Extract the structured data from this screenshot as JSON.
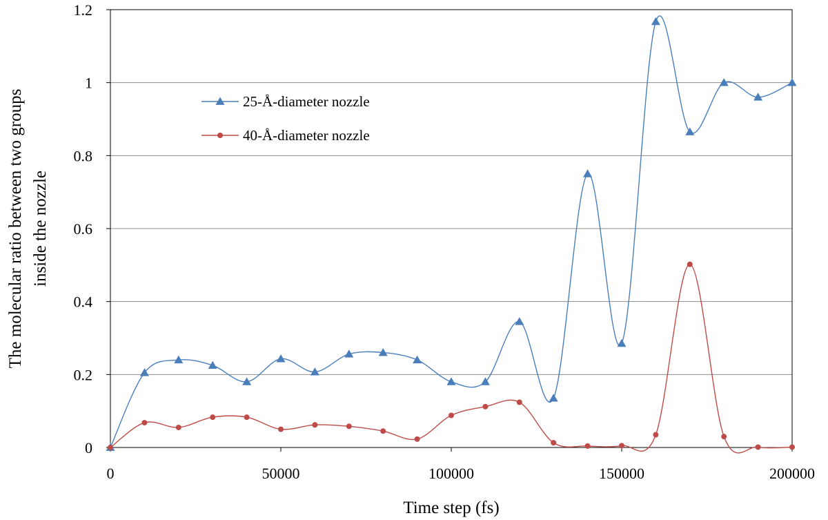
{
  "chart_data": {
    "type": "line",
    "xlabel": "Time step (fs)",
    "ylabel": [
      "The molecular ratio between two groups",
      "inside the nozzle"
    ],
    "xlim": [
      0,
      200000
    ],
    "ylim": [
      0,
      1.2
    ],
    "xticks": [
      0,
      50000,
      100000,
      150000,
      200000
    ],
    "yticks": [
      0,
      0.2,
      0.4,
      0.6,
      0.8,
      1,
      1.2
    ],
    "grid": "horizontal",
    "legend_position": "top-left",
    "series": [
      {
        "name": "25-Å-diameter nozzle",
        "color": "#4a7ebb",
        "marker": "triangle",
        "x": [
          0,
          10000,
          20000,
          30000,
          40000,
          50000,
          60000,
          70000,
          80000,
          90000,
          100000,
          110000,
          120000,
          130000,
          140000,
          150000,
          160000,
          170000,
          180000,
          190000,
          200000
        ],
        "y": [
          0,
          0.205,
          0.24,
          0.225,
          0.18,
          0.243,
          0.207,
          0.256,
          0.26,
          0.24,
          0.18,
          0.18,
          0.345,
          0.135,
          0.75,
          0.285,
          1.167,
          0.865,
          1.0,
          0.96,
          1.0
        ]
      },
      {
        "name": "40-Å-diameter nozzle",
        "color": "#be4b48",
        "marker": "circle",
        "x": [
          0,
          10000,
          20000,
          30000,
          40000,
          50000,
          60000,
          70000,
          80000,
          90000,
          100000,
          110000,
          120000,
          130000,
          140000,
          150000,
          160000,
          170000,
          180000,
          190000,
          200000
        ],
        "y": [
          0,
          0.068,
          0.055,
          0.083,
          0.083,
          0.05,
          0.062,
          0.058,
          0.045,
          0.023,
          0.088,
          0.112,
          0.124,
          0.013,
          0.004,
          0.005,
          0.035,
          0.502,
          0.03,
          0.001,
          0.001
        ]
      }
    ]
  }
}
